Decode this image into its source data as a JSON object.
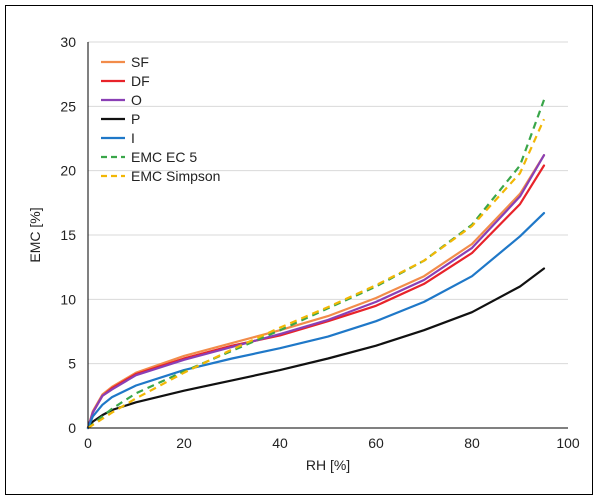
{
  "chart_data": {
    "type": "line",
    "title": "",
    "xlabel": "RH [%]",
    "ylabel": "EMC [%]",
    "xlim": [
      0,
      100
    ],
    "ylim": [
      0,
      30
    ],
    "xticks": [
      0,
      20,
      40,
      60,
      80,
      100
    ],
    "yticks": [
      0,
      5,
      10,
      15,
      20,
      25,
      30
    ],
    "grid": "horizontal",
    "legend_position": "top-left",
    "series": [
      {
        "name": "SF",
        "color": "#f28c4a",
        "dash": "solid",
        "x": [
          0,
          1,
          3,
          5,
          10,
          20,
          30,
          40,
          50,
          60,
          70,
          80,
          90,
          95
        ],
        "y": [
          0.0,
          1.3,
          2.6,
          3.2,
          4.3,
          5.6,
          6.6,
          7.6,
          8.7,
          10.1,
          11.8,
          14.3,
          18.2,
          21.2
        ]
      },
      {
        "name": "DF",
        "color": "#e8232a",
        "dash": "solid",
        "x": [
          0,
          1,
          3,
          5,
          10,
          20,
          30,
          40,
          50,
          60,
          70,
          80,
          90,
          95
        ],
        "y": [
          0.0,
          1.2,
          2.5,
          3.1,
          4.2,
          5.4,
          6.4,
          7.2,
          8.3,
          9.5,
          11.2,
          13.6,
          17.4,
          20.4
        ]
      },
      {
        "name": "O",
        "color": "#8a3fb5",
        "dash": "solid",
        "x": [
          0,
          1,
          3,
          5,
          10,
          20,
          30,
          40,
          50,
          60,
          70,
          80,
          90,
          95
        ],
        "y": [
          0.0,
          1.2,
          2.5,
          3.0,
          4.1,
          5.3,
          6.3,
          7.3,
          8.4,
          9.8,
          11.5,
          14.0,
          18.0,
          21.2
        ]
      },
      {
        "name": "P",
        "color": "#111111",
        "dash": "solid",
        "x": [
          0,
          1,
          3,
          5,
          10,
          20,
          30,
          40,
          50,
          60,
          70,
          80,
          90,
          95
        ],
        "y": [
          0.0,
          0.5,
          1.0,
          1.4,
          2.0,
          2.9,
          3.7,
          4.5,
          5.4,
          6.4,
          7.6,
          9.0,
          11.0,
          12.4
        ]
      },
      {
        "name": "I",
        "color": "#1f78c8",
        "dash": "solid",
        "x": [
          0,
          1,
          3,
          5,
          10,
          20,
          30,
          40,
          50,
          60,
          70,
          80,
          90,
          95
        ],
        "y": [
          0.0,
          0.9,
          1.8,
          2.4,
          3.3,
          4.5,
          5.4,
          6.2,
          7.1,
          8.3,
          9.8,
          11.8,
          14.9,
          16.7
        ]
      },
      {
        "name": "EMC EC 5",
        "color": "#3aa64a",
        "dash": "dashed",
        "x": [
          0,
          5,
          10,
          20,
          30,
          40,
          50,
          60,
          70,
          80,
          90,
          95
        ],
        "y": [
          0.0,
          1.5,
          2.7,
          4.4,
          6.0,
          7.6,
          9.3,
          11.0,
          13.0,
          15.8,
          20.4,
          25.5
        ]
      },
      {
        "name": "EMC Simpson",
        "color": "#f2b705",
        "dash": "dashed",
        "x": [
          0,
          5,
          10,
          20,
          30,
          40,
          50,
          60,
          70,
          80,
          90,
          95
        ],
        "y": [
          0.0,
          1.2,
          2.3,
          4.3,
          6.1,
          7.8,
          9.4,
          11.1,
          13.0,
          15.7,
          19.8,
          24.0
        ]
      }
    ]
  }
}
